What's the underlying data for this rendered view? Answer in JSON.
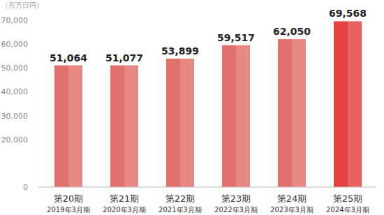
{
  "chart_data": {
    "type": "bar",
    "subtitle": "（百万日円）",
    "categories": [
      "第20期\n2019年3月期",
      "第21期\n2020年3月期",
      "第22期\n2021年3月期",
      "第23期\n2022年3月期",
      "第24期\n2023年3月期",
      "第25期\n2024年3月期"
    ],
    "values": [
      51064,
      51077,
      53899,
      59517,
      62050,
      69568
    ],
    "value_labels": [
      "51,064",
      "51,077",
      "53,899",
      "59,517",
      "62,050",
      "69,568"
    ],
    "colors": [
      "#e2716b",
      "#e2716b",
      "#e2716b",
      "#e2716b",
      "#e2716b",
      "#e4433f"
    ],
    "ylim": [
      0,
      70000
    ],
    "yticks": [
      0,
      {
        "value": 20000,
        "label": "20,000"
      },
      {
        "value": 30000,
        "label": "30,000"
      },
      {
        "value": 40000,
        "label": "40,000"
      },
      {
        "value": 50000,
        "label": "50,000"
      },
      {
        "value": 60000,
        "label": "60,000"
      },
      {
        "value": 70000,
        "label": "70,000"
      }
    ],
    "grid": false,
    "data_labels": true
  }
}
